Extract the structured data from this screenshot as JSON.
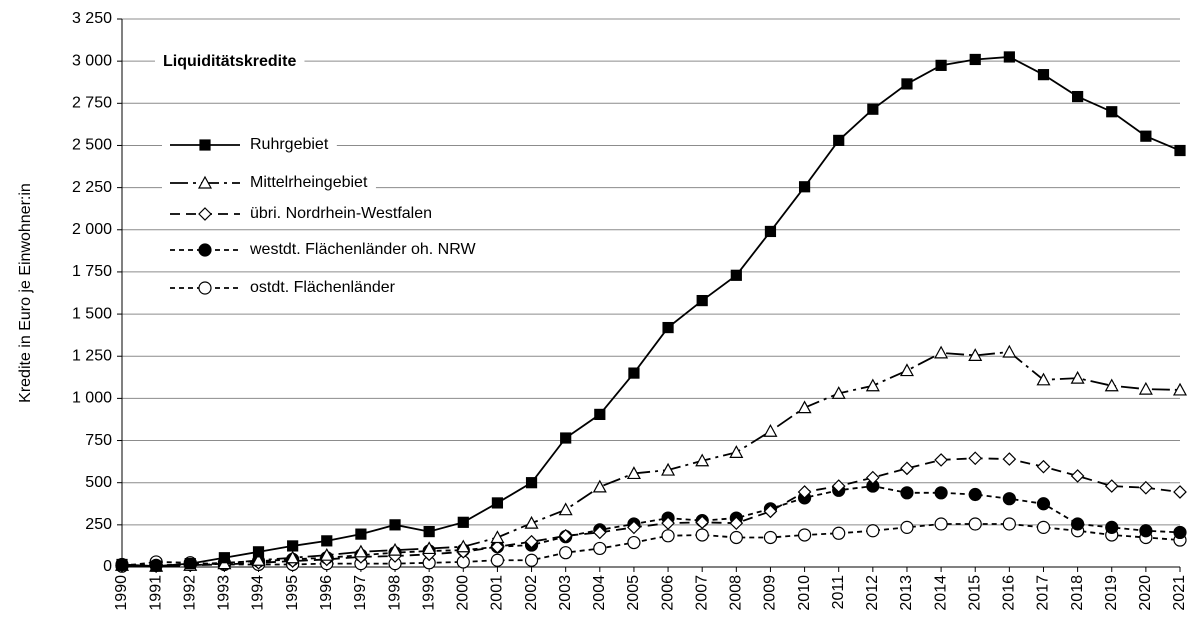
{
  "chart_data": {
    "type": "line",
    "title": "Liquiditätskredite",
    "y_label": "Kredite in Euro je Einwohner:in",
    "categories": [
      "1990",
      "1991",
      "1992",
      "1993",
      "1994",
      "1995",
      "1996",
      "1997",
      "1998",
      "1999",
      "2000",
      "2001",
      "2002",
      "2003",
      "2004",
      "2005",
      "2006",
      "2007",
      "2008",
      "2009",
      "2010",
      "2011",
      "2012",
      "2013",
      "2014",
      "2015",
      "2016",
      "2017",
      "2018",
      "2019",
      "2020",
      "2021"
    ],
    "series": [
      {
        "name": "Ruhrgebiet",
        "color": "#000000",
        "marker": "square-filled",
        "dash": "solid",
        "values": [
          15,
          5,
          20,
          55,
          90,
          125,
          155,
          195,
          250,
          210,
          265,
          380,
          500,
          765,
          905,
          1150,
          1420,
          1580,
          1730,
          1990,
          2255,
          2530,
          2715,
          2865,
          2975,
          3010,
          3025,
          2920,
          2790,
          2700,
          2555,
          2470
        ]
      },
      {
        "name": "Mittelrheingebiet",
        "color": "#000000",
        "marker": "triangle-open",
        "dash": "dash-dot",
        "values": [
          10,
          5,
          10,
          20,
          40,
          55,
          70,
          90,
          100,
          110,
          120,
          175,
          260,
          340,
          475,
          555,
          575,
          630,
          680,
          805,
          945,
          1030,
          1075,
          1165,
          1270,
          1255,
          1275,
          1110,
          1120,
          1075,
          1055,
          1050
        ]
      },
      {
        "name": "übri. Nordrhein-Westfalen",
        "color": "#000000",
        "marker": "diamond-open",
        "dash": "dashed",
        "values": [
          10,
          5,
          10,
          15,
          25,
          35,
          45,
          60,
          65,
          75,
          90,
          120,
          150,
          185,
          205,
          235,
          260,
          265,
          260,
          330,
          445,
          480,
          530,
          585,
          635,
          645,
          640,
          595,
          540,
          480,
          470,
          445
        ]
      },
      {
        "name": "westdt. Flächenländer oh. NRW",
        "color": "#000000",
        "marker": "circle-filled",
        "dash": "short-dashed",
        "values": [
          15,
          10,
          15,
          25,
          35,
          45,
          55,
          70,
          85,
          95,
          100,
          120,
          130,
          180,
          220,
          255,
          290,
          275,
          290,
          345,
          410,
          455,
          480,
          440,
          440,
          430,
          405,
          375,
          255,
          235,
          215,
          205
        ]
      },
      {
        "name": "ostdt. Flächenländer",
        "color": "#000000",
        "marker": "circle-open",
        "dash": "short-dashed",
        "values": [
          5,
          30,
          25,
          15,
          15,
          15,
          20,
          20,
          20,
          25,
          30,
          40,
          40,
          85,
          110,
          145,
          185,
          190,
          175,
          175,
          190,
          200,
          215,
          235,
          255,
          255,
          255,
          235,
          215,
          190,
          175,
          160
        ]
      }
    ],
    "ylim": [
      0,
      3250
    ],
    "yticks": [
      0,
      250,
      500,
      750,
      {
        "value": 1000,
        "label": "1 000"
      },
      {
        "value": 1250,
        "label": "1 250"
      },
      {
        "value": 1500,
        "label": "1 500"
      },
      {
        "value": 1750,
        "label": "1 750"
      },
      {
        "value": 2000,
        "label": "2 000"
      },
      {
        "value": 2250,
        "label": "2 250"
      },
      {
        "value": 2500,
        "label": "2 500"
      },
      {
        "value": 2750,
        "label": "2 750"
      },
      {
        "value": 3000,
        "label": "3 000"
      },
      {
        "value": 3250,
        "label": "3 250"
      }
    ],
    "grid": true,
    "legend": "upper left"
  }
}
